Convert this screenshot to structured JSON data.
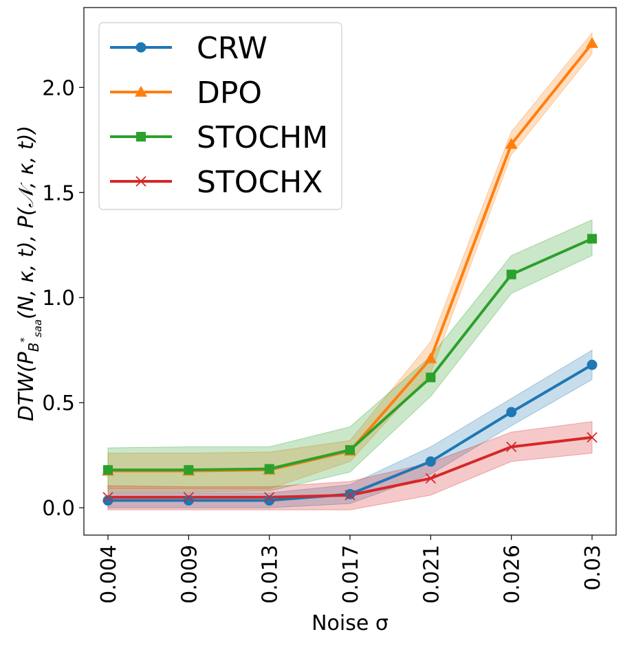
{
  "chart_data": {
    "type": "line",
    "title": "",
    "xlabel": "Noise σ",
    "ylabel": "DTW(P_{B*_saa}(N, κ, t), P(𝒩, κ, t))",
    "ylabel_parts": {
      "lead": "DTW(",
      "p": "P",
      "sub": "B",
      "sup": "*",
      "subsub": "saa",
      "tail": "(N, κ, t), P(𝒩, κ, t))"
    },
    "x": [
      "0.004",
      "0.009",
      "0.013",
      "0.017",
      "0.021",
      "0.026",
      "0.03"
    ],
    "ylim": [
      -0.13,
      2.38
    ],
    "yticks": [
      0.0,
      0.5,
      1.0,
      1.5,
      2.0
    ],
    "ytick_labels": [
      "0.0",
      "0.5",
      "1.0",
      "1.5",
      "2.0"
    ],
    "grid": false,
    "legend_position": "top-left",
    "series": [
      {
        "name": "CRW",
        "color": "#1f77b4",
        "marker": "circle",
        "values": [
          0.035,
          0.035,
          0.035,
          0.065,
          0.22,
          0.455,
          0.68
        ],
        "lower": [
          0.0,
          0.0,
          0.0,
          0.02,
          0.16,
          0.39,
          0.61
        ],
        "upper": [
          0.07,
          0.07,
          0.07,
          0.11,
          0.29,
          0.52,
          0.75
        ]
      },
      {
        "name": "DPO",
        "color": "#ff7f0e",
        "marker": "triangle",
        "values": [
          0.175,
          0.175,
          0.18,
          0.27,
          0.71,
          1.73,
          2.21
        ],
        "lower": [
          0.09,
          0.09,
          0.09,
          0.22,
          0.64,
          1.68,
          2.16
        ],
        "upper": [
          0.26,
          0.26,
          0.265,
          0.32,
          0.79,
          1.79,
          2.26
        ]
      },
      {
        "name": "STOCHM",
        "color": "#2ca02c",
        "marker": "square",
        "values": [
          0.18,
          0.18,
          0.185,
          0.275,
          0.62,
          1.11,
          1.28
        ],
        "lower": [
          0.075,
          0.075,
          0.08,
          0.17,
          0.53,
          1.02,
          1.2
        ],
        "upper": [
          0.285,
          0.29,
          0.29,
          0.385,
          0.72,
          1.2,
          1.37
        ]
      },
      {
        "name": "STOCHX",
        "color": "#d62728",
        "marker": "x",
        "values": [
          0.05,
          0.05,
          0.05,
          0.06,
          0.14,
          0.29,
          0.335
        ],
        "lower": [
          -0.01,
          -0.01,
          -0.01,
          -0.01,
          0.06,
          0.22,
          0.26
        ],
        "upper": [
          0.105,
          0.1,
          0.1,
          0.125,
          0.215,
          0.36,
          0.41
        ]
      }
    ]
  }
}
